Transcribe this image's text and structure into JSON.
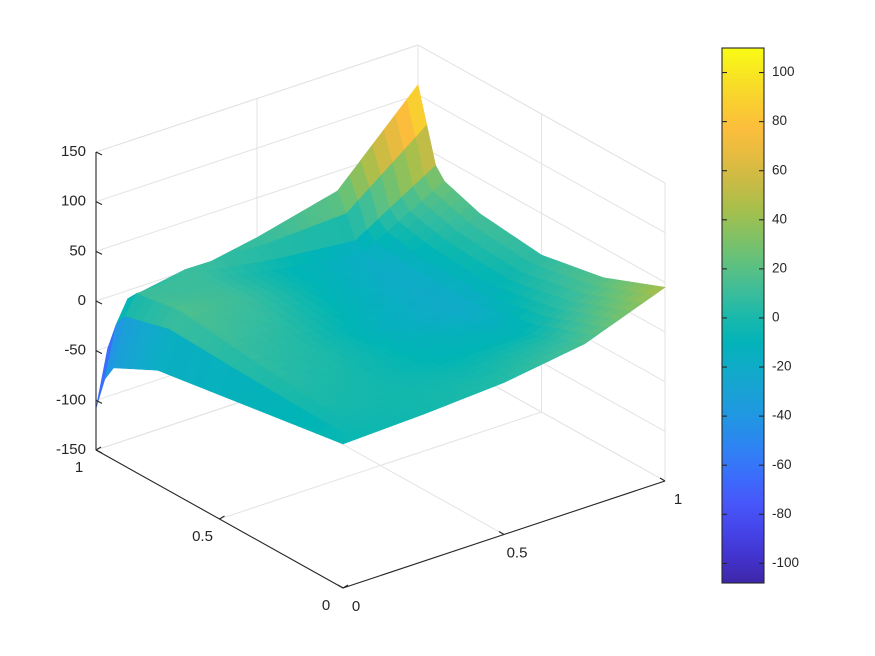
{
  "chart_data": {
    "type": "surface",
    "title": "",
    "xlabel": "",
    "ylabel": "",
    "zlabel": "",
    "grid": true,
    "colormap": "parula",
    "x_range": [
      0,
      1
    ],
    "y_range": [
      0,
      1
    ],
    "z_range": [
      -150,
      150
    ],
    "color_range": [
      -108,
      110
    ],
    "x_ticks": [
      0,
      0.5,
      1
    ],
    "x_tick_labels": [
      "0",
      "0.5",
      "1"
    ],
    "y_ticks": [
      0,
      0.5,
      1
    ],
    "y_tick_labels": [
      "0",
      "0.5",
      "1"
    ],
    "z_ticks": [
      -150,
      -100,
      -50,
      0,
      50,
      100,
      150
    ],
    "z_tick_labels": [
      "-150",
      "-100",
      "-50",
      "0",
      "50",
      "100",
      "150"
    ],
    "colorbar_ticks": [
      -100,
      -80,
      -60,
      -40,
      -20,
      0,
      20,
      40,
      60,
      80,
      100
    ],
    "colorbar_tick_labels": [
      "-100",
      "-80",
      "-60",
      "-40",
      "-20",
      "0",
      "20",
      "40",
      "60",
      "80",
      "100"
    ],
    "corner_values": [
      {
        "x": 0,
        "y": 0,
        "z": -5
      },
      {
        "x": 1,
        "y": 0,
        "z": 45
      },
      {
        "x": 1,
        "y": 1,
        "z": 110
      },
      {
        "x": 0,
        "y": 1,
        "z": -108
      }
    ],
    "edge_samples": {
      "y0": {
        "x": [
          0,
          0.25,
          0.5,
          0.75,
          1
        ],
        "z": [
          -5,
          -2,
          3,
          15,
          45
        ]
      },
      "x1": {
        "y": [
          0,
          0.25,
          0.5,
          0.75,
          0.92,
          1
        ],
        "z": [
          45,
          20,
          8,
          15,
          30,
          110
        ]
      },
      "y1": {
        "x": [
          0,
          0.05,
          0.25,
          0.5,
          0.75,
          1
        ],
        "z": [
          -108,
          -30,
          -5,
          10,
          30,
          110
        ]
      },
      "x0": {
        "y": [
          0,
          0.25,
          0.5,
          0.75,
          0.95,
          1
        ],
        "z": [
          -5,
          -15,
          -25,
          -35,
          -60,
          -108
        ]
      }
    }
  }
}
